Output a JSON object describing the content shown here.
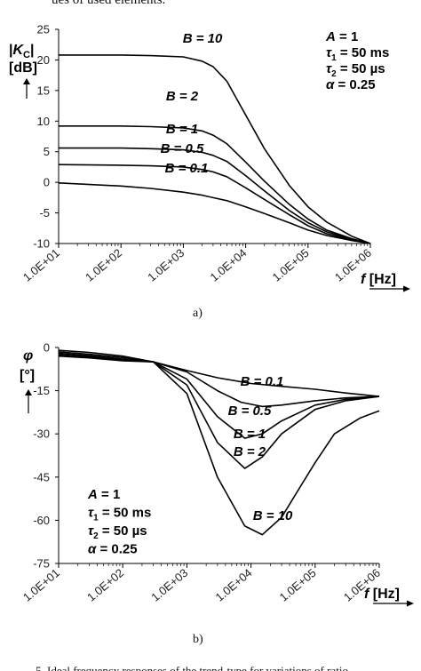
{
  "header_fragment": "ues of used elements.",
  "footer_fragment": "5. Ideal frequency responses of the trend-type for variations of ratio",
  "chart_data": [
    {
      "type": "line",
      "caption": "a)",
      "ylabel": "|K_C| [dB]",
      "ylabel_parts": {
        "main": "|K",
        "sub": "C",
        "close": "|",
        "unit": "[dB]"
      },
      "xlabel": "f [Hz]",
      "x_scale": "log",
      "xlim": [
        10,
        1000000
      ],
      "ylim": [
        -10,
        25
      ],
      "yticks": [
        25,
        20,
        15,
        10,
        5,
        0,
        -5,
        -10
      ],
      "xticks": [
        10,
        100,
        1000,
        10000,
        100000,
        1000000
      ],
      "xtick_labels": [
        "1.0E+01",
        "1.0E+02",
        "1.0E+03",
        "1.0E+04",
        "1.0E+05",
        "1.0E+06"
      ],
      "grid": false,
      "parameters": [
        "A = 1",
        "τ1 = 50 ms",
        "τ2 = 50 µs",
        "α = 0.25"
      ],
      "series": [
        {
          "name": "B = 10",
          "x": [
            10,
            100,
            300,
            1000,
            2000,
            3000,
            5000,
            10000,
            20000,
            50000,
            100000,
            200000,
            500000,
            1000000
          ],
          "y": [
            20.8,
            20.8,
            20.7,
            20.5,
            19.8,
            18.9,
            16.5,
            11.0,
            5.5,
            -0.5,
            -4.0,
            -6.5,
            -8.8,
            -10.0
          ]
        },
        {
          "name": "B = 2",
          "x": [
            10,
            100,
            300,
            1000,
            2000,
            3000,
            5000,
            10000,
            20000,
            50000,
            100000,
            200000,
            500000,
            1000000
          ],
          "y": [
            9.2,
            9.2,
            9.1,
            8.9,
            8.4,
            7.7,
            6.3,
            3.3,
            0.2,
            -3.6,
            -6.0,
            -7.8,
            -9.2,
            -10.0
          ]
        },
        {
          "name": "B = 1",
          "x": [
            10,
            100,
            300,
            1000,
            2000,
            3000,
            5000,
            10000,
            20000,
            50000,
            100000,
            200000,
            500000,
            1000000
          ],
          "y": [
            5.6,
            5.6,
            5.5,
            5.3,
            4.9,
            4.4,
            3.4,
            1.1,
            -1.4,
            -4.6,
            -6.6,
            -8.1,
            -9.3,
            -10.0
          ]
        },
        {
          "name": "B = 0.5",
          "x": [
            10,
            100,
            300,
            1000,
            2000,
            3000,
            5000,
            10000,
            20000,
            50000,
            100000,
            200000,
            500000,
            1000000
          ],
          "y": [
            2.9,
            2.8,
            2.7,
            2.5,
            2.1,
            1.7,
            0.9,
            -0.9,
            -2.8,
            -5.3,
            -7.1,
            -8.4,
            -9.4,
            -10.0
          ]
        },
        {
          "name": "B = 0.1",
          "x": [
            10,
            100,
            300,
            1000,
            2000,
            3000,
            5000,
            10000,
            20000,
            50000,
            100000,
            200000,
            500000,
            1000000
          ],
          "y": [
            -0.1,
            -0.6,
            -1.0,
            -1.6,
            -2.1,
            -2.5,
            -3.0,
            -4.0,
            -5.1,
            -6.6,
            -7.8,
            -8.7,
            -9.5,
            -10.0
          ]
        }
      ]
    },
    {
      "type": "line",
      "caption": "b)",
      "ylabel": "φ [°]",
      "ylabel_parts": {
        "main": "φ",
        "unit": "[°]"
      },
      "xlabel": "f [Hz]",
      "x_scale": "log",
      "xlim": [
        10,
        1000000
      ],
      "ylim": [
        -75,
        0
      ],
      "yticks": [
        0,
        -15,
        -30,
        -45,
        -60,
        -75
      ],
      "xticks": [
        10,
        100,
        1000,
        10000,
        100000,
        1000000
      ],
      "xtick_labels": [
        "1.0E+01",
        "1.0E+02",
        "1.0E+03",
        "1.0E+04",
        "1.0E+05",
        "1.0E+06"
      ],
      "grid": false,
      "parameters": [
        "A = 1",
        "τ1 = 50 ms",
        "τ2 = 50 µs",
        "α = 0.25"
      ],
      "series": [
        {
          "name": "B = 0.1",
          "x": [
            10,
            30,
            100,
            300,
            1000,
            3000,
            10000,
            30000,
            100000,
            300000,
            1000000
          ],
          "y": [
            -1.0,
            -1.7,
            -3.0,
            -5.0,
            -8.0,
            -10.5,
            -12.5,
            -13.5,
            -14.5,
            -15.8,
            -17.0
          ]
        },
        {
          "name": "B = 0.5",
          "x": [
            10,
            30,
            100,
            300,
            1000,
            3000,
            7000,
            15000,
            30000,
            100000,
            300000,
            1000000
          ],
          "y": [
            -1.5,
            -2.3,
            -3.5,
            -5.0,
            -8.5,
            -15.0,
            -19.0,
            -20.5,
            -20.0,
            -18.5,
            -17.5,
            -17.0
          ]
        },
        {
          "name": "B = 1",
          "x": [
            10,
            30,
            100,
            300,
            1000,
            3000,
            8000,
            15000,
            30000,
            100000,
            300000,
            1000000
          ],
          "y": [
            -2.0,
            -2.8,
            -4.0,
            -5.0,
            -11.0,
            -24.0,
            -31.5,
            -30.0,
            -25.5,
            -20.0,
            -18.0,
            -17.0
          ]
        },
        {
          "name": "B = 2",
          "x": [
            10,
            30,
            100,
            300,
            1000,
            3000,
            8000,
            15000,
            30000,
            100000,
            300000,
            1000000
          ],
          "y": [
            -2.5,
            -3.2,
            -4.2,
            -5.0,
            -13.0,
            -33.0,
            -42.0,
            -38.0,
            -30.0,
            -21.5,
            -18.5,
            -17.0
          ]
        },
        {
          "name": "B = 10",
          "x": [
            10,
            30,
            100,
            300,
            1000,
            3000,
            8000,
            15000,
            30000,
            60000,
            100000,
            200000,
            500000,
            1000000
          ],
          "y": [
            -3.0,
            -3.6,
            -4.6,
            -5.0,
            -16.0,
            -45.0,
            -62.0,
            -65.0,
            -59.0,
            -48.0,
            -40.0,
            -30.0,
            -24.5,
            -22.0
          ]
        }
      ]
    }
  ]
}
